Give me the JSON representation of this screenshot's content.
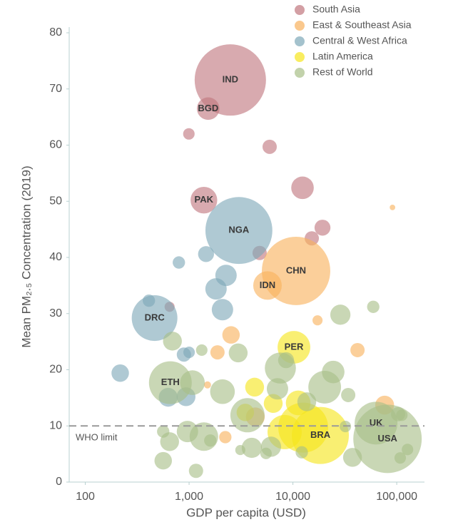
{
  "chart_data": {
    "type": "scatter",
    "x_label": "GDP per capita (USD)",
    "y_label": "Mean PM₂.₅ Concentration (2019)",
    "xlim": [
      70,
      185000
    ],
    "ylim": [
      0,
      80
    ],
    "xscale": "log",
    "xticks": [
      100,
      {
        "value": 1000,
        "label": "1,000"
      },
      {
        "value": 10000,
        "label": "10,000"
      },
      {
        "value": 100000,
        "label": "100,000"
      }
    ],
    "yticks": [
      0,
      10,
      20,
      30,
      40,
      50,
      60,
      70,
      80
    ],
    "legend": "top-right",
    "reference_line": {
      "value": 10,
      "label": "WHO limit",
      "color": "#9a9a9a"
    },
    "series": [
      {
        "name": "South Asia",
        "color": "#c0767e",
        "x": [
          2495,
          1527,
          1388,
          995,
          5970,
          12370,
          19270,
          15200,
          4780,
          649
        ],
        "values": [
          71.6,
          66.5,
          50.2,
          62.0,
          59.7,
          52.4,
          45.3,
          43.4,
          40.8,
          31.2
        ],
        "sizes": [
          100,
          10,
          14,
          2.6,
          4,
          10,
          5,
          4,
          4,
          2
        ],
        "labels": [
          "IND",
          "BGD",
          "PAK",
          null,
          null,
          null,
          null,
          null,
          null,
          null
        ]
      },
      {
        "name": "East & Southeast Asia",
        "color": "#f8b15c",
        "x": [
          10720,
          5690,
          2535,
          1877,
          17260,
          41900,
          76500,
          91000,
          2233,
          4345,
          1503
        ],
        "values": [
          37.6,
          35.0,
          26.2,
          23.1,
          28.8,
          23.5,
          13.7,
          48.9,
          8.0,
          11.6,
          17.3
        ],
        "sizes": [
          92,
          16,
          6,
          4,
          2,
          4,
          7,
          0.6,
          3,
          7,
          1
        ],
        "labels": [
          "CHN",
          "IDN",
          null,
          null,
          null,
          null,
          null,
          null,
          null,
          null,
          null
        ]
      },
      {
        "name": "Central & West Africa",
        "color": "#7ea8b8",
        "x": [
          3017,
          465,
          1456,
          797,
          2268,
          1817,
          2096,
          410,
          217,
          891,
          1000,
          629,
          934
        ],
        "values": [
          44.8,
          29.2,
          40.6,
          39.1,
          36.8,
          34.4,
          30.7,
          32.3,
          19.4,
          22.7,
          23.1,
          15.1,
          15.2
        ],
        "sizes": [
          88,
          41,
          5,
          3,
          9,
          9,
          9,
          3,
          6,
          4,
          2.6,
          7,
          7
        ],
        "labels": [
          "NGA",
          "DRC",
          null,
          null,
          null,
          null,
          null,
          null,
          null,
          null,
          null,
          null,
          null
        ]
      },
      {
        "name": "Latin America",
        "color": "#f6e51c",
        "x": [
          18370,
          10230,
          4276,
          6460,
          11240,
          12570,
          3480,
          8320
        ],
        "values": [
          8.3,
          24.0,
          16.9,
          14.0,
          14.1,
          9.7,
          12.4,
          8.9
        ],
        "sizes": [
          64,
          21,
          7,
          7,
          12,
          49,
          6,
          23
        ],
        "labels": [
          "BRA",
          "PER",
          null,
          null,
          null,
          null,
          null,
          null
        ]
      },
      {
        "name": "Rest of World",
        "color": "#a8bf88",
        "x": [
          81500,
          63200,
          660,
          28650,
          59400,
          691,
          2970,
          1324,
          2096,
          1077,
          7570,
          8590,
          7100,
          24440,
          20230,
          34100,
          3650,
          13600,
          964,
          1388,
          649,
          563,
          1600,
          563,
          1166,
          4015,
          3113,
          6156,
          5510,
          12170,
          32000,
          37500,
          103000,
          112000,
          127000,
          108000
        ],
        "values": [
          7.7,
          10.5,
          17.7,
          29.8,
          31.2,
          25.1,
          23.0,
          23.5,
          16.1,
          17.7,
          20.3,
          21.7,
          16.6,
          19.6,
          16.9,
          15.5,
          11.9,
          14.3,
          9.0,
          8.1,
          7.2,
          9.0,
          7.4,
          3.8,
          2.0,
          6.1,
          5.7,
          6.3,
          5.1,
          5.3,
          9.9,
          4.4,
          12.1,
          11.9,
          5.8,
          4.3
        ],
        "sizes": [
          92,
          36,
          36,
          8,
          3,
          7,
          7,
          2.6,
          12,
          12,
          19,
          5,
          9,
          10,
          21,
          4,
          23,
          7,
          9,
          16,
          7,
          3,
          3,
          6,
          4,
          8,
          2,
          8,
          2.6,
          3,
          2.6,
          7,
          4,
          2.6,
          2.6,
          2.6
        ],
        "labels": [
          "USA",
          "UK",
          "ETH",
          null,
          null,
          null,
          null,
          null,
          null,
          null,
          null,
          null,
          null,
          null,
          null,
          null,
          null,
          null,
          null,
          null,
          null,
          null,
          null,
          null,
          null,
          null,
          null,
          null,
          null,
          null,
          null,
          null,
          null,
          null,
          null,
          null
        ]
      }
    ]
  }
}
